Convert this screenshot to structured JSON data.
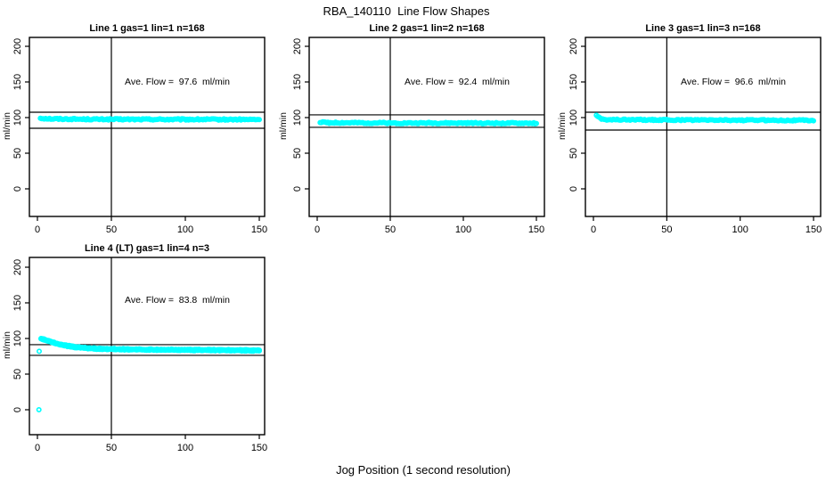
{
  "main_title": "RBA_140110  Line Flow Shapes",
  "x_axis_label": "Jog Position (1 second resolution)",
  "chart_data": {
    "type": "scatter",
    "title": "RBA_140110  Line Flow Shapes",
    "xlabel": "Jog Position (1 second resolution)",
    "ylabel": "ml/min",
    "xlim": [
      0,
      150
    ],
    "ylim": [
      0,
      200
    ],
    "x_ticks": [
      0,
      50,
      100,
      150
    ],
    "y_ticks": [
      0,
      50,
      100,
      150,
      200
    ],
    "grid": false,
    "legend": "none",
    "marker": "open-circle",
    "marker_color": "#00FFFF",
    "axis_color": "#000000",
    "background_color": "#FFFFFF",
    "panels": [
      {
        "title": "Line 1 gas=1 lin=1 n=168",
        "annotation": "Ave. Flow =  97.6  ml/min",
        "ylabel": "ml/min",
        "ave_flow_ml_min": 97.6,
        "n": 168,
        "vline_x": 50,
        "hlines": [
          107.5,
          85.0
        ],
        "series": {
          "x_start": 2,
          "x_end": 150,
          "n": 168,
          "passes": 1,
          "pass_offset": 0,
          "noise": 1.0,
          "profile": [
            [
              2,
              99.2
            ],
            [
              10,
              98.2
            ],
            [
              40,
              97.6
            ],
            [
              100,
              97.4
            ],
            [
              150,
              97.2
            ]
          ],
          "extra_points": []
        }
      },
      {
        "title": "Line 2 gas=1 lin=2 n=168",
        "annotation": "Ave. Flow =  92.4  ml/min",
        "ylabel": "ml/min",
        "ave_flow_ml_min": 92.4,
        "n": 168,
        "vline_x": 50,
        "hlines": [
          103.8,
          86.3
        ],
        "series": {
          "x_start": 2,
          "x_end": 150,
          "n": 168,
          "passes": 1,
          "pass_offset": 0,
          "noise": 0.9,
          "profile": [
            [
              2,
              93.5
            ],
            [
              8,
              92.8
            ],
            [
              50,
              92.4
            ],
            [
              150,
              92.1
            ]
          ],
          "extra_points": []
        }
      },
      {
        "title": "Line 3 gas=1 lin=3 n=168",
        "annotation": "Ave. Flow =  96.6  ml/min",
        "ylabel": "ml/min",
        "ave_flow_ml_min": 96.6,
        "n": 168,
        "vline_x": 50,
        "hlines": [
          107.5,
          82.5
        ],
        "series": {
          "x_start": 2,
          "x_end": 150,
          "n": 168,
          "passes": 1,
          "pass_offset": 0,
          "noise": 0.9,
          "profile": [
            [
              2,
              104.0
            ],
            [
              3,
              101.5
            ],
            [
              5,
              98.5
            ],
            [
              9,
              97.2
            ],
            [
              50,
              96.6
            ],
            [
              150,
              96.2
            ]
          ],
          "extra_points": []
        }
      },
      {
        "title": "Line 4 (LT) gas=1 lin=4 n=3",
        "annotation": "Ave. Flow =  83.8  ml/min",
        "ylabel": "ml/min",
        "ave_flow_ml_min": 83.8,
        "n": 3,
        "vline_x": 50,
        "hlines": [
          91.3,
          76.3
        ],
        "series": {
          "x_start": 2.5,
          "x_end": 150,
          "n": 150,
          "passes": 3,
          "pass_offset": 0.5,
          "noise": 0.55,
          "profile": [
            [
              2.5,
              99.5
            ],
            [
              4,
              98.8
            ],
            [
              6,
              97.5
            ],
            [
              9,
              95.5
            ],
            [
              13,
              92.8
            ],
            [
              18,
              90.3
            ],
            [
              24,
              88.3
            ],
            [
              32,
              86.7
            ],
            [
              42,
              85.6
            ],
            [
              55,
              84.9
            ],
            [
              75,
              84.3
            ],
            [
              110,
              83.8
            ],
            [
              150,
              83.2
            ]
          ],
          "extra_points": [
            [
              1,
              0
            ],
            [
              1.2,
              82
            ]
          ]
        }
      }
    ]
  }
}
